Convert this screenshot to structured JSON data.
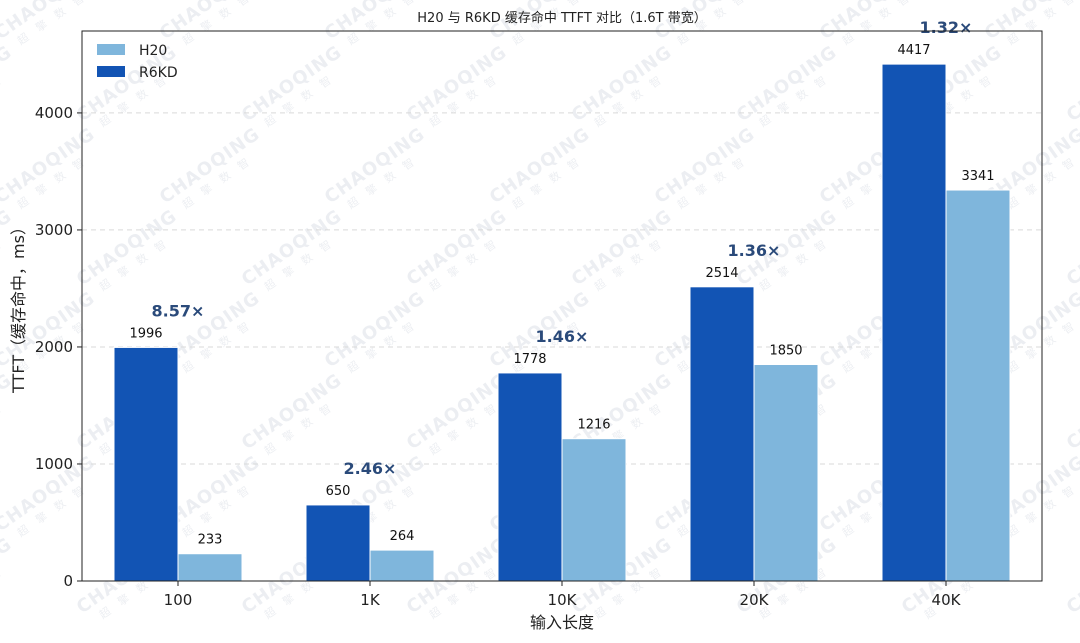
{
  "chart_data": {
    "type": "bar",
    "title": "H20 与 R6KD 缓存命中 TTFT 对比（1.6T 带宽）",
    "xlabel": "输入长度",
    "ylabel": "TTFT（缓存命中，ms）",
    "categories": [
      "100",
      "1K",
      "10K",
      "20K",
      "40K"
    ],
    "series": [
      {
        "name": "R6KD",
        "color": "#1254b4",
        "values": [
          1996,
          650,
          1778,
          2514,
          4417
        ]
      },
      {
        "name": "H20",
        "color": "#7fb6dc",
        "values": [
          233,
          264,
          1216,
          1850,
          3341
        ]
      }
    ],
    "legend": {
      "position": "top-left",
      "entries": [
        {
          "name": "H20",
          "color": "#7fb6dc"
        },
        {
          "name": "R6KD",
          "color": "#1254b4"
        }
      ]
    },
    "ratios": [
      "8.57×",
      "2.46×",
      "1.46×",
      "1.36×",
      "1.32×"
    ],
    "ylim": [
      0,
      4700
    ],
    "yticks": [
      0,
      1000,
      2000,
      3000,
      4000
    ],
    "grid": "horizontal dashed"
  },
  "watermark": {
    "text": "CHAOQING",
    "subtext": "超 擎 数 智"
  }
}
